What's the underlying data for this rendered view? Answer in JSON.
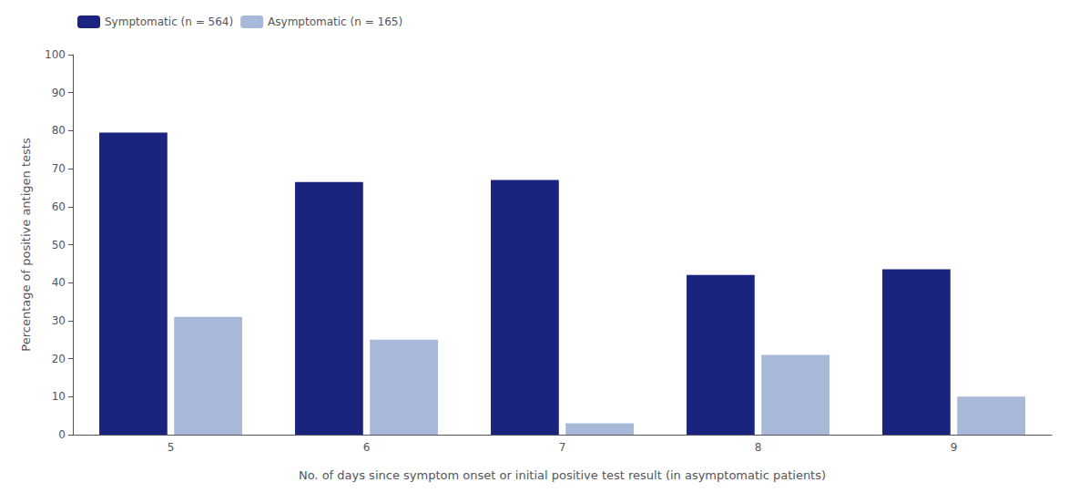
{
  "chart_data": {
    "type": "bar",
    "categories": [
      "5",
      "6",
      "7",
      "8",
      "9"
    ],
    "series": [
      {
        "name": "Symptomatic (n = 564)",
        "color": "#1a237e",
        "values": [
          79.5,
          66.5,
          67.0,
          42.0,
          43.5
        ]
      },
      {
        "name": "Asymptomatic (n = 165)",
        "color": "#a8b8d8",
        "values": [
          31.0,
          25.0,
          3.0,
          21.0,
          10.0
        ]
      }
    ],
    "xlabel": "No. of days since symptom onset or initial positive test result (in asymptomatic patients)",
    "ylabel": "Percentage of positive antigen tests",
    "ylim": [
      0,
      100
    ],
    "yticks": [
      0,
      10,
      20,
      30,
      40,
      50,
      60,
      70,
      80,
      90,
      100
    ],
    "grid": false,
    "legend": "upper left"
  }
}
